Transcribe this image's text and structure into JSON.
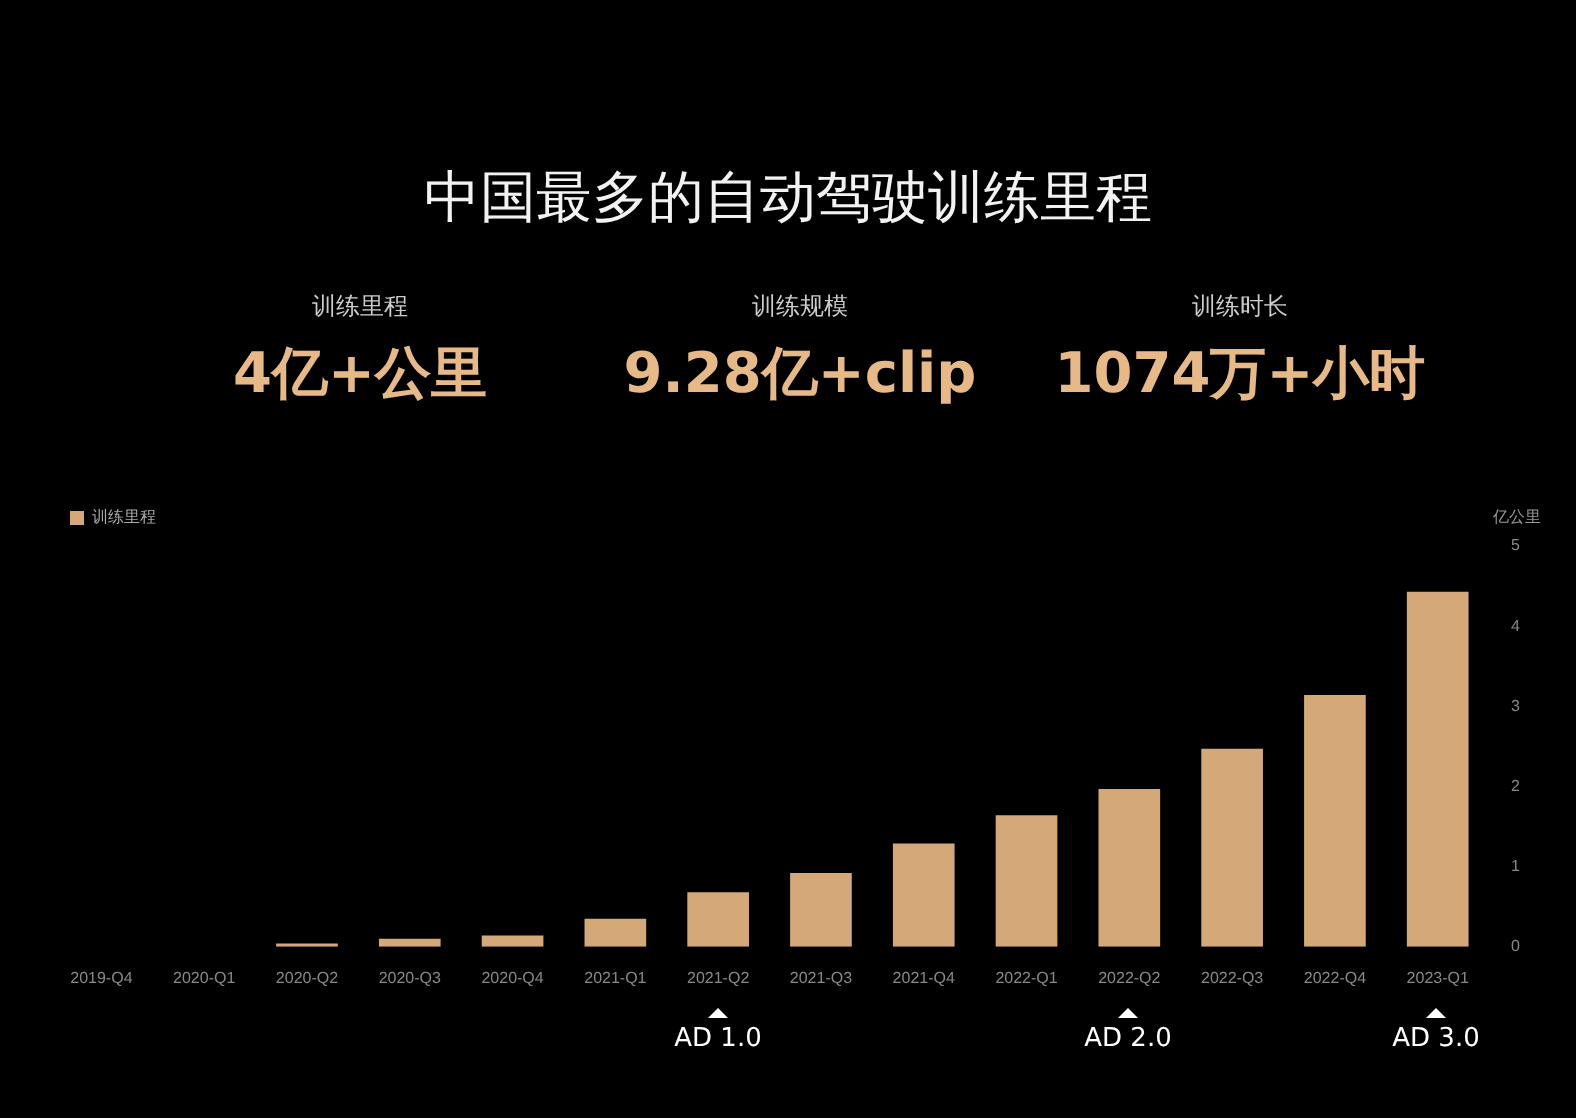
{
  "chart_data": {
    "type": "bar",
    "title": "中国最多的自动驾驶训练里程",
    "annotations": [
      "训练里程",
      "4亿+公里",
      "训练规模",
      "9.28亿+clip",
      "训练时长",
      "1074万+小时",
      "AD 1.0",
      "AD 2.0",
      "AD 3.0"
    ],
    "ylabel": "亿公里",
    "categories": [
      "2019-Q4",
      "2020-Q1",
      "2020-Q2",
      "2020-Q3",
      "2020-Q4",
      "2021-Q1",
      "2021-Q2",
      "2021-Q3",
      "2021-Q4",
      "2022-Q1",
      "2022-Q2",
      "2022-Q3",
      "2022-Q4",
      "2023-Q1"
    ],
    "series": [
      {
        "name": "训练里程",
        "color": "#d4a877",
        "values": [
          0,
          0,
          0.04,
          0.1,
          0.14,
          0.35,
          0.68,
          0.92,
          1.29,
          1.64,
          1.97,
          2.47,
          3.14,
          4.43
        ]
      }
    ],
    "ylim": [
      0,
      5
    ],
    "yticks": [
      0,
      1,
      2,
      3,
      4,
      5
    ],
    "grid": false,
    "legend": "top left"
  }
}
